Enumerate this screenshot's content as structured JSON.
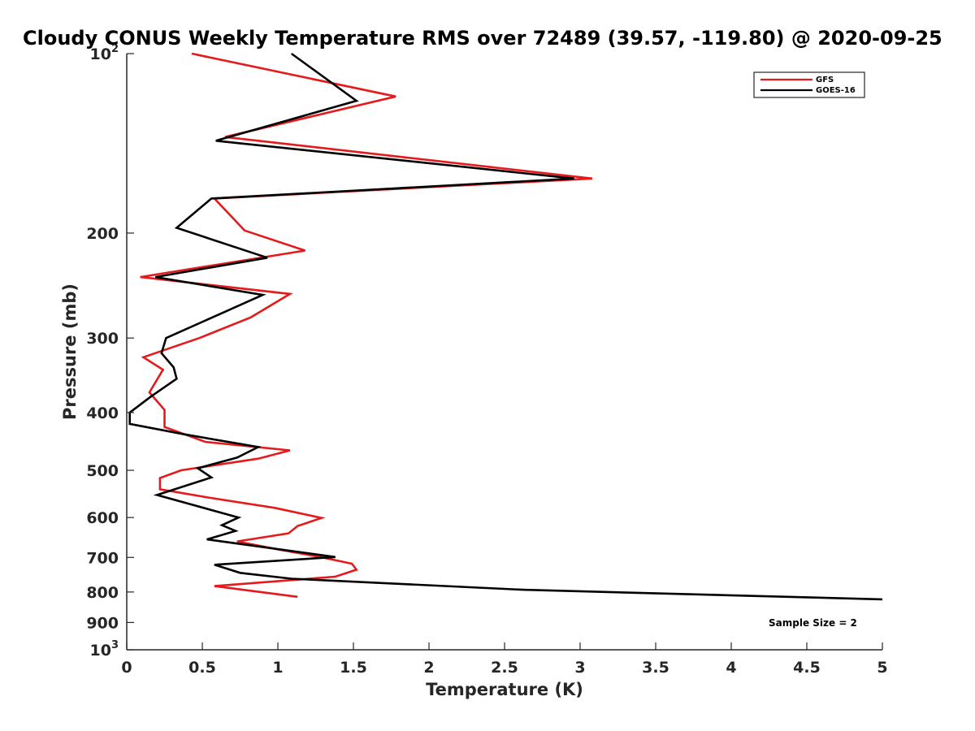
{
  "chart_data": {
    "type": "line",
    "title": "Cloudy CONUS Weekly Temperature RMS over 72489 (39.57, -119.80) @ 2020-09-25",
    "xlabel": "Temperature (K)",
    "ylabel": "Pressure (mb)",
    "xlim": [
      0,
      5
    ],
    "ylim": [
      100,
      1000
    ],
    "y_scale": "log",
    "y_reversed": true,
    "grid": false,
    "legend_position": "top-right",
    "x_ticks": [
      0,
      0.5,
      1,
      1.5,
      2,
      2.5,
      3,
      3.5,
      4,
      4.5,
      5
    ],
    "x_tick_labels": [
      "0",
      "0.5",
      "1",
      "1.5",
      "2",
      "2.5",
      "3",
      "3.5",
      "4",
      "4.5",
      "5"
    ],
    "y_ticks": [
      {
        "value": 100,
        "base": "10",
        "exp": "2"
      },
      {
        "value": 200,
        "label": "200"
      },
      {
        "value": 300,
        "label": "300"
      },
      {
        "value": 400,
        "label": "400"
      },
      {
        "value": 500,
        "label": "500"
      },
      {
        "value": 600,
        "label": "600"
      },
      {
        "value": 700,
        "label": "700"
      },
      {
        "value": 800,
        "label": "800"
      },
      {
        "value": 900,
        "label": "900"
      },
      {
        "value": 1000,
        "base": "10",
        "exp": "3"
      }
    ],
    "series": [
      {
        "name": "GFS",
        "color": "#e41a1c",
        "points": [
          [
            0.43,
            100
          ],
          [
            1.78,
            118
          ],
          [
            0.65,
            138
          ],
          [
            3.08,
            162
          ],
          [
            0.58,
            175
          ],
          [
            0.78,
            198
          ],
          [
            1.18,
            214
          ],
          [
            0.09,
            237
          ],
          [
            1.08,
            253
          ],
          [
            0.82,
            277
          ],
          [
            0.48,
            300
          ],
          [
            0.11,
            323
          ],
          [
            0.24,
            339
          ],
          [
            0.15,
            370
          ],
          [
            0.25,
            396
          ],
          [
            0.25,
            423
          ],
          [
            0.52,
            448
          ],
          [
            1.08,
            463
          ],
          [
            0.87,
            478
          ],
          [
            0.36,
            500
          ],
          [
            0.22,
            515
          ],
          [
            0.22,
            538
          ],
          [
            0.55,
            556
          ],
          [
            0.98,
            578
          ],
          [
            1.29,
            601
          ],
          [
            1.13,
            620
          ],
          [
            1.07,
            638
          ],
          [
            0.73,
            658
          ],
          [
            0.98,
            677
          ],
          [
            1.27,
            698
          ],
          [
            1.49,
            717
          ],
          [
            1.52,
            734
          ],
          [
            1.38,
            754
          ],
          [
            0.58,
            782
          ],
          [
            1.13,
            815
          ]
        ]
      },
      {
        "name": "GOES-16",
        "color": "#000000",
        "points": [
          [
            1.09,
            100
          ],
          [
            1.52,
            120
          ],
          [
            0.59,
            140
          ],
          [
            2.96,
            162
          ],
          [
            0.56,
            175
          ],
          [
            0.33,
            196
          ],
          [
            0.93,
            220
          ],
          [
            0.19,
            237
          ],
          [
            0.9,
            254
          ],
          [
            0.26,
            300
          ],
          [
            0.23,
            318
          ],
          [
            0.31,
            336
          ],
          [
            0.33,
            351
          ],
          [
            0.16,
            376
          ],
          [
            0.02,
            400
          ],
          [
            0.02,
            418
          ],
          [
            0.38,
            435
          ],
          [
            0.87,
            457
          ],
          [
            0.73,
            476
          ],
          [
            0.47,
            496
          ],
          [
            0.56,
            514
          ],
          [
            0.2,
            550
          ],
          [
            0.74,
            600
          ],
          [
            0.63,
            618
          ],
          [
            0.72,
            632
          ],
          [
            0.53,
            653
          ],
          [
            1.38,
            699
          ],
          [
            0.58,
            720
          ],
          [
            0.75,
            743
          ],
          [
            1.09,
            760
          ],
          [
            2.62,
            793
          ],
          [
            5.0,
            823
          ]
        ]
      }
    ],
    "annotation": "Sample Size = 2"
  }
}
